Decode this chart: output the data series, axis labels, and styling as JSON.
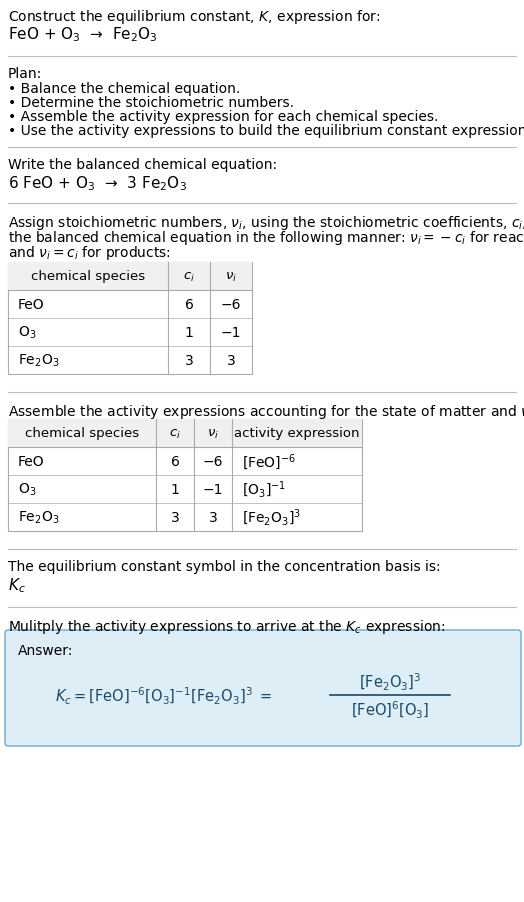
{
  "title_line1": "Construct the equilibrium constant, $K$, expression for:",
  "title_line2": "FeO + O$_3$  →  Fe$_2$O$_3$",
  "plan_header": "Plan:",
  "plan_steps": [
    "• Balance the chemical equation.",
    "• Determine the stoichiometric numbers.",
    "• Assemble the activity expression for each chemical species.",
    "• Use the activity expressions to build the equilibrium constant expression."
  ],
  "balanced_header": "Write the balanced chemical equation:",
  "balanced_eq": "6 FeO + O$_3$  →  3 Fe$_2$O$_3$",
  "stoich_intro_lines": [
    "Assign stoichiometric numbers, $\\nu_i$, using the stoichiometric coefficients, $c_i$, from",
    "the balanced chemical equation in the following manner: $\\nu_i = -c_i$ for reactants",
    "and $\\nu_i = c_i$ for products:"
  ],
  "table1_headers": [
    "chemical species",
    "$c_i$",
    "$\\nu_i$"
  ],
  "table1_rows": [
    [
      "FeO",
      "6",
      "−6"
    ],
    [
      "O$_3$",
      "1",
      "−1"
    ],
    [
      "Fe$_2$O$_3$",
      "3",
      "3"
    ]
  ],
  "activity_intro": "Assemble the activity expressions accounting for the state of matter and $\\nu_i$:",
  "table2_headers": [
    "chemical species",
    "$c_i$",
    "$\\nu_i$",
    "activity expression"
  ],
  "table2_rows": [
    [
      "FeO",
      "6",
      "−6",
      "[FeO]$^{-6}$"
    ],
    [
      "O$_3$",
      "1",
      "−1",
      "[O$_3$]$^{-1}$"
    ],
    [
      "Fe$_2$O$_3$",
      "3",
      "3",
      "[Fe$_2$O$_3$]$^3$"
    ]
  ],
  "Kc_intro": "The equilibrium constant symbol in the concentration basis is:",
  "Kc_symbol": "$K_c$",
  "multiply_intro": "Mulitply the activity expressions to arrive at the $K_c$ expression:",
  "answer_label": "Answer:",
  "answer_box_color": "#deeef6",
  "answer_box_border": "#7ab8d4",
  "bg_color": "#ffffff",
  "text_color": "#000000",
  "table_border_color": "#aaaaaa",
  "separator_color": "#bbbbbb",
  "answer_text_color": "#1a4a6b"
}
